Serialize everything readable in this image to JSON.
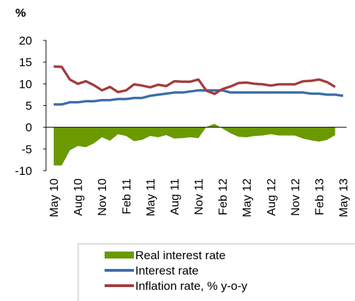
{
  "chart_data": {
    "type": "line",
    "y_label": "%",
    "categories": [
      "May 10",
      null,
      null,
      "Aug 10",
      null,
      null,
      "Nov 10",
      null,
      null,
      "Feb 11",
      null,
      null,
      "May 11",
      null,
      null,
      "Aug 11",
      null,
      null,
      "Nov 11",
      null,
      null,
      "Feb 12",
      null,
      null,
      "May 12",
      null,
      null,
      "Aug 12",
      null,
      null,
      "Nov 12",
      null,
      null,
      "Feb 13",
      null,
      null,
      "May 13"
    ],
    "series": [
      {
        "name": "Real interest rate",
        "kind": "area",
        "color": "#6a9a00",
        "values": [
          -8.8,
          -8.8,
          -5.3,
          -4.3,
          -4.6,
          -3.7,
          -2.3,
          -3.1,
          -1.6,
          -2.0,
          -3.2,
          -2.9,
          -2.0,
          -2.3,
          -1.8,
          -2.6,
          -2.5,
          -2.3,
          -2.5,
          0.1,
          0.8,
          -0.3,
          -1.4,
          -2.2,
          -2.3,
          -2.0,
          -1.9,
          -1.6,
          -1.9,
          -1.9,
          -1.9,
          -2.6,
          -3.0,
          -3.3,
          -2.9,
          -1.8,
          null
        ]
      },
      {
        "name": "Interest rate",
        "kind": "line",
        "color": "#3c6ea8",
        "values": [
          5.25,
          5.25,
          5.75,
          5.75,
          6.0,
          6.0,
          6.25,
          6.25,
          6.5,
          6.5,
          6.75,
          6.75,
          7.25,
          7.5,
          7.75,
          8.0,
          8.0,
          8.25,
          8.5,
          8.5,
          8.5,
          8.5,
          8.0,
          8.0,
          8.0,
          8.0,
          8.0,
          8.0,
          8.0,
          8.0,
          8.0,
          8.0,
          7.75,
          7.75,
          7.5,
          7.5,
          7.25
        ]
      },
      {
        "name": "Inflation rate, % y-o-y",
        "kind": "line",
        "color": "#a53b3b",
        "values": [
          14.0,
          13.9,
          11.0,
          10.0,
          10.6,
          9.7,
          8.5,
          9.3,
          8.1,
          8.5,
          9.9,
          9.6,
          9.2,
          9.8,
          9.5,
          10.6,
          10.5,
          10.5,
          11.0,
          8.4,
          7.7,
          8.8,
          9.4,
          10.2,
          10.3,
          10.0,
          9.9,
          9.6,
          9.9,
          9.9,
          9.9,
          10.6,
          10.7,
          11.0,
          10.4,
          9.3,
          null
        ]
      }
    ],
    "ylim": [
      -10,
      20
    ],
    "yticks": [
      -10,
      -5,
      0,
      5,
      10,
      15,
      20
    ],
    "legend": "bottom"
  }
}
